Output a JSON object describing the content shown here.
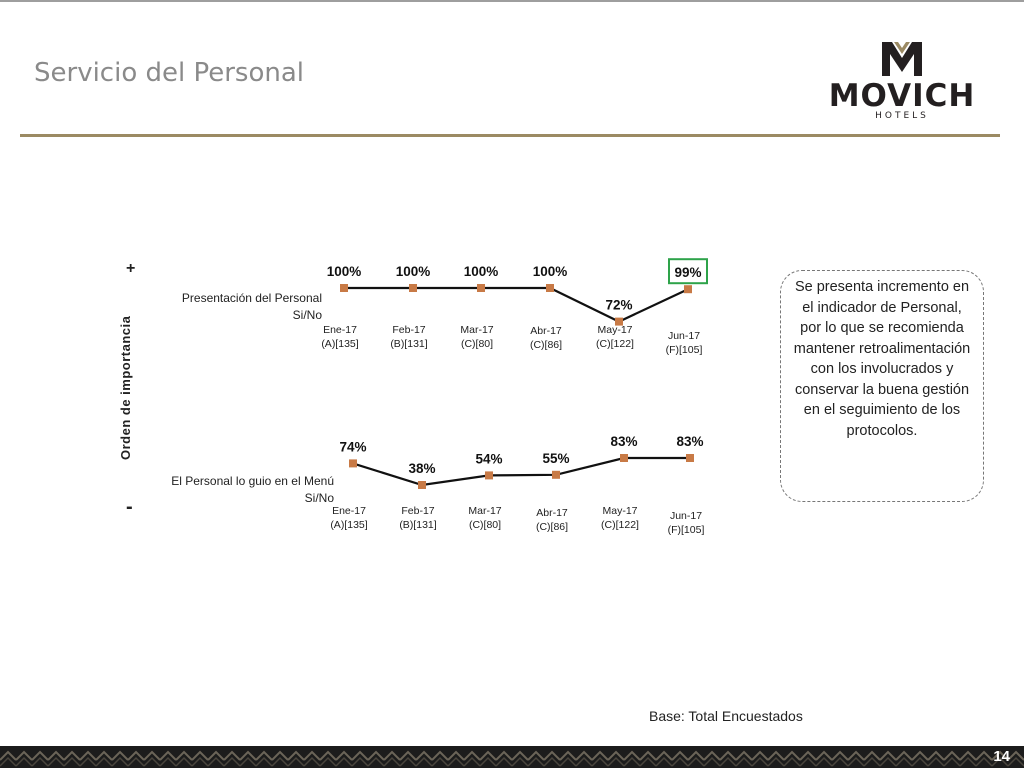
{
  "page": {
    "title": "Servicio del Personal",
    "page_number": "14",
    "base_note": "Base: Total Encuestados"
  },
  "logo": {
    "word": "MOVICH",
    "sub": "HOTELS"
  },
  "axis": {
    "label": "Orden de importancia",
    "plus": "+",
    "minus": "-"
  },
  "note_text": "Se presenta incremento en el indicador de Personal, por lo que se recomienda mantener retroalimentación con los involucrados y conservar la buena gestión en el seguimiento de los protocolos.",
  "colors": {
    "brand_gold": "#9b8a63",
    "marker": "#c87a46",
    "highlight": "#2ea34a",
    "line": "#111111"
  },
  "chart_data": [
    {
      "type": "line",
      "series_label": [
        "Presentación del Personal",
        "Si/No"
      ],
      "categories": [
        "Ene-17",
        "Feb-17",
        "Mar-17",
        "Abr-17",
        "May-17",
        "Jun-17"
      ],
      "category_bases": [
        "(A)[135]",
        "(B)[131]",
        "(C)[80]",
        "(C)[86]",
        "(C)[122]",
        "(F)[105]"
      ],
      "values": [
        100,
        100,
        100,
        100,
        72,
        99
      ],
      "value_labels": [
        "100%",
        "100%",
        "100%",
        "100%",
        "72%",
        "99%"
      ],
      "highlighted_index": 5
    },
    {
      "type": "line",
      "series_label": [
        "El Personal lo guio en el Menú",
        "Si/No"
      ],
      "categories": [
        "Ene-17",
        "Feb-17",
        "Mar-17",
        "Abr-17",
        "May-17",
        "Jun-17"
      ],
      "category_bases": [
        "(A)[135]",
        "(B)[131]",
        "(C)[80]",
        "(C)[86]",
        "(C)[122]",
        "(F)[105]"
      ],
      "values": [
        74,
        38,
        54,
        55,
        83,
        83
      ],
      "value_labels": [
        "74%",
        "38%",
        "54%",
        "55%",
        "83%",
        "83%"
      ]
    }
  ]
}
